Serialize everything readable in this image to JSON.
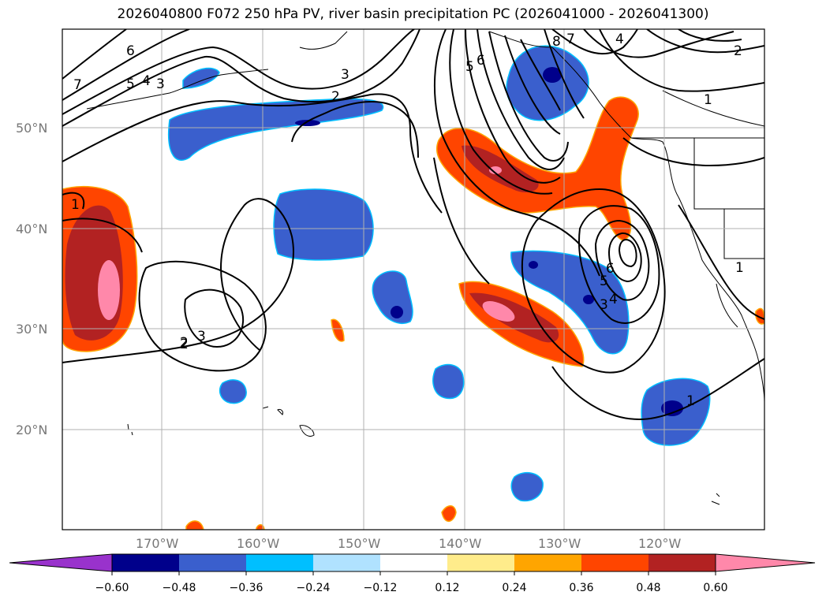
{
  "title": "2026040800 F072 250 hPa PV, river basin precipitation PC (2026041000 - 2026041300)",
  "map": {
    "lat_ticks": [
      "50°N",
      "40°N",
      "30°N",
      "20°N"
    ],
    "lon_ticks": [
      "170°W",
      "160°W",
      "150°W",
      "140°W",
      "130°W",
      "120°W"
    ],
    "contour_labels": [
      "7",
      "6",
      "5",
      "4",
      "3",
      "2",
      "3",
      "2",
      "1",
      "2",
      "3",
      "5",
      "6",
      "8",
      "7",
      "4",
      "2",
      "1",
      "3",
      "4",
      "5",
      "6",
      "1",
      "1"
    ]
  },
  "colorbar": {
    "tick_labels": [
      "−0.60",
      "−0.48",
      "−0.36",
      "−0.24",
      "−0.12",
      "0.12",
      "0.24",
      "0.36",
      "0.48",
      "0.60"
    ],
    "colors": [
      "#9932cc",
      "#00008b",
      "#3a5fcd",
      "#00bfff",
      "#b0e2ff",
      "#ffffff",
      "#ffec8b",
      "#ffa500",
      "#ff4500",
      "#b22222",
      "#ff88aa"
    ]
  }
}
